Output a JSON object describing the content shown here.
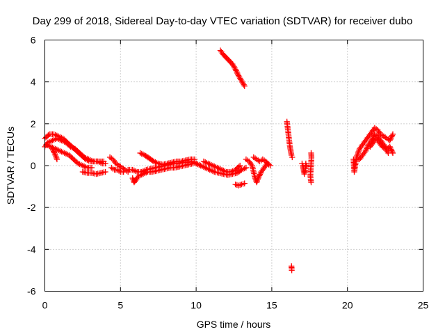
{
  "chart_data": {
    "type": "scatter",
    "title": "Day 299 of 2018, Sidereal Day-to-day VTEC variation (SDTVAR) for receiver dubo",
    "xlabel": "GPS time / hours",
    "ylabel": "SDTVAR / TECUs",
    "xlim": [
      0,
      25
    ],
    "ylim": [
      -6,
      6
    ],
    "xticks": [
      0,
      5,
      10,
      15,
      20,
      25
    ],
    "yticks": [
      -6,
      -4,
      -2,
      0,
      2,
      4,
      6
    ],
    "grid": true,
    "marker": "plus",
    "color": "#ff0000",
    "series": [
      {
        "name": "SDTVAR",
        "segments": [
          [
            [
              0.0,
              0.9
            ],
            [
              0.2,
              1.1
            ],
            [
              0.5,
              1.2
            ],
            [
              0.8,
              1.3
            ],
            [
              1.1,
              1.2
            ],
            [
              1.4,
              1.1
            ],
            [
              1.7,
              0.9
            ],
            [
              2.0,
              0.8
            ],
            [
              2.3,
              0.6
            ],
            [
              2.6,
              0.4
            ],
            [
              2.9,
              0.3
            ],
            [
              3.2,
              0.2
            ],
            [
              3.5,
              0.2
            ],
            [
              3.8,
              0.1
            ],
            [
              4.0,
              0.1
            ]
          ],
          [
            [
              0.0,
              1.3
            ],
            [
              0.3,
              1.5
            ],
            [
              0.6,
              1.5
            ],
            [
              0.9,
              1.4
            ],
            [
              1.2,
              1.3
            ],
            [
              1.5,
              1.1
            ],
            [
              1.8,
              0.9
            ],
            [
              2.1,
              0.7
            ],
            [
              2.4,
              0.5
            ],
            [
              2.7,
              0.3
            ],
            [
              3.0,
              0.2
            ],
            [
              3.3,
              0.2
            ],
            [
              3.6,
              0.2
            ],
            [
              3.9,
              0.2
            ]
          ],
          [
            [
              0.1,
              1.0
            ],
            [
              0.4,
              0.9
            ],
            [
              0.7,
              0.8
            ],
            [
              1.0,
              0.7
            ],
            [
              1.3,
              0.6
            ],
            [
              1.6,
              0.5
            ],
            [
              1.9,
              0.3
            ],
            [
              2.2,
              0.1
            ],
            [
              2.5,
              0.0
            ],
            [
              2.8,
              -0.1
            ],
            [
              3.1,
              -0.1
            ]
          ],
          [
            [
              0.5,
              0.8
            ],
            [
              0.7,
              0.5
            ],
            [
              0.8,
              0.3
            ]
          ],
          [
            [
              2.5,
              -0.3
            ],
            [
              2.8,
              -0.35
            ],
            [
              3.1,
              -0.35
            ],
            [
              3.4,
              -0.4
            ],
            [
              3.7,
              -0.35
            ],
            [
              4.0,
              -0.3
            ]
          ],
          [
            [
              4.3,
              0.4
            ],
            [
              4.5,
              0.3
            ],
            [
              4.7,
              0.1
            ],
            [
              4.9,
              0.0
            ],
            [
              5.1,
              -0.1
            ],
            [
              5.3,
              -0.2
            ],
            [
              5.5,
              -0.3
            ]
          ],
          [
            [
              4.4,
              -0.1
            ],
            [
              4.6,
              -0.2
            ],
            [
              4.8,
              -0.2
            ],
            [
              5.0,
              -0.3
            ],
            [
              5.2,
              -0.3
            ]
          ],
          [
            [
              5.5,
              -0.2
            ],
            [
              5.8,
              -0.2
            ],
            [
              6.1,
              -0.3
            ],
            [
              6.4,
              -0.3
            ],
            [
              6.7,
              -0.2
            ],
            [
              7.0,
              -0.15
            ],
            [
              7.3,
              -0.1
            ],
            [
              7.6,
              -0.05
            ],
            [
              7.9,
              0.0
            ],
            [
              8.2,
              0.05
            ],
            [
              8.5,
              0.1
            ],
            [
              8.8,
              0.1
            ],
            [
              9.1,
              0.15
            ],
            [
              9.4,
              0.15
            ],
            [
              9.7,
              0.2
            ],
            [
              10.0,
              0.1
            ],
            [
              10.3,
              0.0
            ]
          ],
          [
            [
              5.8,
              -0.6
            ],
            [
              5.9,
              -0.8
            ],
            [
              6.0,
              -0.7
            ],
            [
              6.2,
              -0.5
            ],
            [
              6.5,
              -0.4
            ],
            [
              6.8,
              -0.3
            ],
            [
              7.1,
              -0.3
            ],
            [
              7.4,
              -0.25
            ],
            [
              7.7,
              -0.2
            ],
            [
              8.0,
              -0.15
            ],
            [
              8.3,
              -0.1
            ],
            [
              8.6,
              -0.1
            ],
            [
              8.9,
              -0.05
            ],
            [
              9.2,
              0.0
            ],
            [
              9.5,
              0.05
            ],
            [
              9.8,
              0.1
            ]
          ],
          [
            [
              6.3,
              0.6
            ],
            [
              6.6,
              0.5
            ],
            [
              6.9,
              0.35
            ],
            [
              7.2,
              0.2
            ],
            [
              7.5,
              0.1
            ],
            [
              7.8,
              0.05
            ],
            [
              8.1,
              0.1
            ],
            [
              8.4,
              0.15
            ],
            [
              8.7,
              0.2
            ],
            [
              9.0,
              0.2
            ],
            [
              9.3,
              0.25
            ],
            [
              9.6,
              0.3
            ],
            [
              9.9,
              0.3
            ]
          ],
          [
            [
              10.0,
              0.1
            ],
            [
              10.3,
              0.0
            ],
            [
              10.6,
              -0.1
            ],
            [
              10.9,
              -0.2
            ],
            [
              11.2,
              -0.3
            ],
            [
              11.5,
              -0.35
            ],
            [
              11.8,
              -0.4
            ],
            [
              12.1,
              -0.45
            ],
            [
              12.4,
              -0.4
            ],
            [
              12.7,
              -0.35
            ],
            [
              13.0,
              -0.2
            ],
            [
              13.3,
              -0.1
            ]
          ],
          [
            [
              10.5,
              0.2
            ],
            [
              10.8,
              0.1
            ],
            [
              11.1,
              0.0
            ],
            [
              11.4,
              -0.1
            ],
            [
              11.7,
              -0.2
            ],
            [
              12.0,
              -0.3
            ],
            [
              12.3,
              -0.3
            ],
            [
              12.6,
              -0.2
            ],
            [
              12.9,
              0.0
            ]
          ],
          [
            [
              12.6,
              -0.9
            ],
            [
              12.8,
              -0.95
            ],
            [
              13.0,
              -0.9
            ],
            [
              13.2,
              -0.85
            ]
          ],
          [
            [
              13.3,
              0.3
            ],
            [
              13.5,
              0.2
            ],
            [
              13.7,
              0.0
            ],
            [
              13.8,
              -0.3
            ],
            [
              13.9,
              -0.6
            ],
            [
              14.0,
              -0.8
            ],
            [
              14.1,
              -0.6
            ],
            [
              14.3,
              -0.3
            ],
            [
              14.5,
              -0.1
            ],
            [
              14.7,
              0.1
            ],
            [
              14.9,
              0.0
            ]
          ],
          [
            [
              13.8,
              0.4
            ],
            [
              14.0,
              0.3
            ],
            [
              14.2,
              0.2
            ],
            [
              14.4,
              0.3
            ],
            [
              14.6,
              0.2
            ],
            [
              14.8,
              0.05
            ]
          ],
          [
            [
              11.6,
              5.5
            ],
            [
              11.8,
              5.3
            ],
            [
              12.0,
              5.15
            ],
            [
              12.2,
              5.0
            ],
            [
              12.4,
              4.85
            ],
            [
              12.6,
              4.6
            ],
            [
              12.8,
              4.3
            ],
            [
              13.0,
              4.05
            ],
            [
              13.2,
              3.8
            ]
          ],
          [
            [
              16.0,
              2.1
            ],
            [
              16.05,
              1.8
            ],
            [
              16.1,
              1.5
            ],
            [
              16.15,
              1.2
            ],
            [
              16.2,
              0.9
            ],
            [
              16.25,
              0.7
            ],
            [
              16.3,
              0.5
            ],
            [
              16.35,
              0.4
            ]
          ],
          [
            [
              16.3,
              -4.8
            ],
            [
              16.32,
              -5.0
            ]
          ],
          [
            [
              17.0,
              0.1
            ],
            [
              17.05,
              0.0
            ],
            [
              17.1,
              -0.2
            ],
            [
              17.15,
              -0.4
            ],
            [
              17.2,
              -0.3
            ],
            [
              17.25,
              0.1
            ],
            [
              17.3,
              0.0
            ]
          ],
          [
            [
              17.6,
              0.6
            ],
            [
              17.62,
              0.4
            ],
            [
              17.55,
              -0.5
            ],
            [
              17.6,
              -0.8
            ]
          ],
          [
            [
              20.4,
              0.3
            ],
            [
              20.45,
              -0.3
            ],
            [
              20.6,
              0.4
            ],
            [
              20.8,
              0.8
            ],
            [
              21.0,
              1.0
            ],
            [
              21.2,
              1.2
            ],
            [
              21.4,
              1.4
            ],
            [
              21.6,
              1.6
            ],
            [
              21.8,
              1.8
            ],
            [
              22.0,
              1.7
            ],
            [
              22.2,
              1.5
            ],
            [
              22.4,
              1.4
            ],
            [
              22.6,
              1.3
            ],
            [
              22.8,
              1.2
            ],
            [
              23.0,
              1.5
            ]
          ],
          [
            [
              20.8,
              0.3
            ],
            [
              21.0,
              0.5
            ],
            [
              21.2,
              0.7
            ],
            [
              21.4,
              1.0
            ],
            [
              21.6,
              1.2
            ],
            [
              21.8,
              1.5
            ],
            [
              22.0,
              1.4
            ],
            [
              22.2,
              1.2
            ],
            [
              22.4,
              1.0
            ],
            [
              22.6,
              0.8
            ],
            [
              22.8,
              0.9
            ],
            [
              23.0,
              0.6
            ]
          ],
          [
            [
              21.5,
              0.9
            ],
            [
              21.7,
              1.1
            ],
            [
              21.9,
              1.3
            ],
            [
              22.1,
              1.1
            ],
            [
              22.3,
              0.9
            ],
            [
              22.5,
              0.8
            ],
            [
              22.7,
              0.6
            ]
          ]
        ]
      }
    ]
  }
}
